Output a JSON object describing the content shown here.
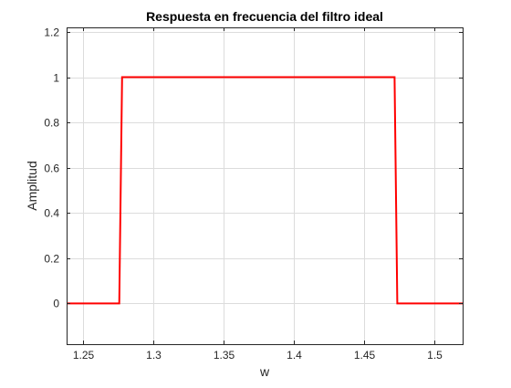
{
  "chart_data": {
    "type": "line",
    "title": "Respuesta en frecuencia del filtro ideal",
    "xlabel": "w",
    "ylabel": "Amplitud",
    "xlim": [
      1.238,
      1.52
    ],
    "ylim": [
      -0.18,
      1.22
    ],
    "xticks": [
      1.25,
      1.3,
      1.35,
      1.4,
      1.45,
      1.5
    ],
    "xtick_labels": [
      "1.25",
      "1.3",
      "1.35",
      "1.4",
      "1.45",
      "1.5"
    ],
    "yticks": [
      0,
      0.2,
      0.4,
      0.6,
      0.8,
      1,
      1.2
    ],
    "ytick_labels": [
      "0",
      "0.2",
      "0.4",
      "0.6",
      "0.8",
      "1",
      "1.2"
    ],
    "grid": true,
    "series": [
      {
        "color": "#ff0000",
        "x": [
          1.238,
          1.2755,
          1.2775,
          1.4715,
          1.4735,
          1.52
        ],
        "y": [
          0,
          0,
          1,
          1,
          0,
          0
        ]
      }
    ]
  }
}
